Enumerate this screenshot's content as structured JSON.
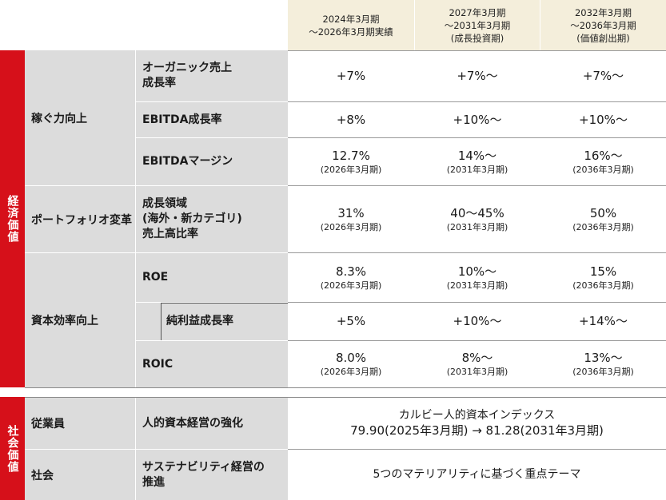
{
  "header": {
    "col_a": [
      "2024年3月期",
      "〜2026年3月期実績"
    ],
    "col_b": [
      "2027年3月期",
      "〜2031年3月期",
      "(成長投資期)"
    ],
    "col_c": [
      "2032年3月期",
      "〜2036年3月期",
      "(価値創出期)"
    ]
  },
  "sections": {
    "economic": "経済価値",
    "social": "社会価値"
  },
  "groups": {
    "earning": "稼ぐ力向上",
    "portfolio": "ポートフォリオ変革",
    "capital": "資本効率向上",
    "employees": "従業員",
    "society": "社会"
  },
  "rows": [
    {
      "label": [
        "オーガニック売上",
        "成長率"
      ],
      "a": "+7%",
      "a_sub": "",
      "b": "+7%〜",
      "b_sub": "",
      "c": "+7%〜",
      "c_sub": ""
    },
    {
      "label": [
        "EBITDA成長率"
      ],
      "a": "+8%",
      "a_sub": "",
      "b": "+10%〜",
      "b_sub": "",
      "c": "+10%〜",
      "c_sub": ""
    },
    {
      "label": [
        "EBITDAマージン"
      ],
      "a": "12.7%",
      "a_sub": "(2026年3月期)",
      "b": "14%〜",
      "b_sub": "(2031年3月期)",
      "c": "16%〜",
      "c_sub": "(2036年3月期)"
    },
    {
      "label": [
        "成長領域",
        "(海外・新カテゴリ)",
        "売上高比率"
      ],
      "a": "31%",
      "a_sub": "(2026年3月期)",
      "b": "40〜45%",
      "b_sub": "(2031年3月期)",
      "c": "50%",
      "c_sub": "(2036年3月期)"
    },
    {
      "label": [
        "ROE"
      ],
      "a": "8.3%",
      "a_sub": "(2026年3月期)",
      "b": "10%〜",
      "b_sub": "(2031年3月期)",
      "c": "15%",
      "c_sub": "(2036年3月期)"
    },
    {
      "label": [
        "純利益成長率"
      ],
      "a": "+5%",
      "a_sub": "",
      "b": "+10%〜",
      "b_sub": "",
      "c": "+14%〜",
      "c_sub": ""
    },
    {
      "label": [
        "ROIC"
      ],
      "a": "8.0%",
      "a_sub": "(2026年3月期)",
      "b": "8%〜",
      "b_sub": "(2031年3月期)",
      "c": "13%〜",
      "c_sub": "(2036年3月期)"
    }
  ],
  "social_rows": [
    {
      "label": [
        "人的資本経営の強化"
      ],
      "value": [
        "カルビー人的資本インデックス",
        "79.90(2025年3月期) → 81.28(2031年3月期)"
      ]
    },
    {
      "label": [
        "サステナビリティ経営の",
        "推進"
      ],
      "value": [
        "5つのマテリアリティに基づく重点テーマ"
      ]
    }
  ]
}
